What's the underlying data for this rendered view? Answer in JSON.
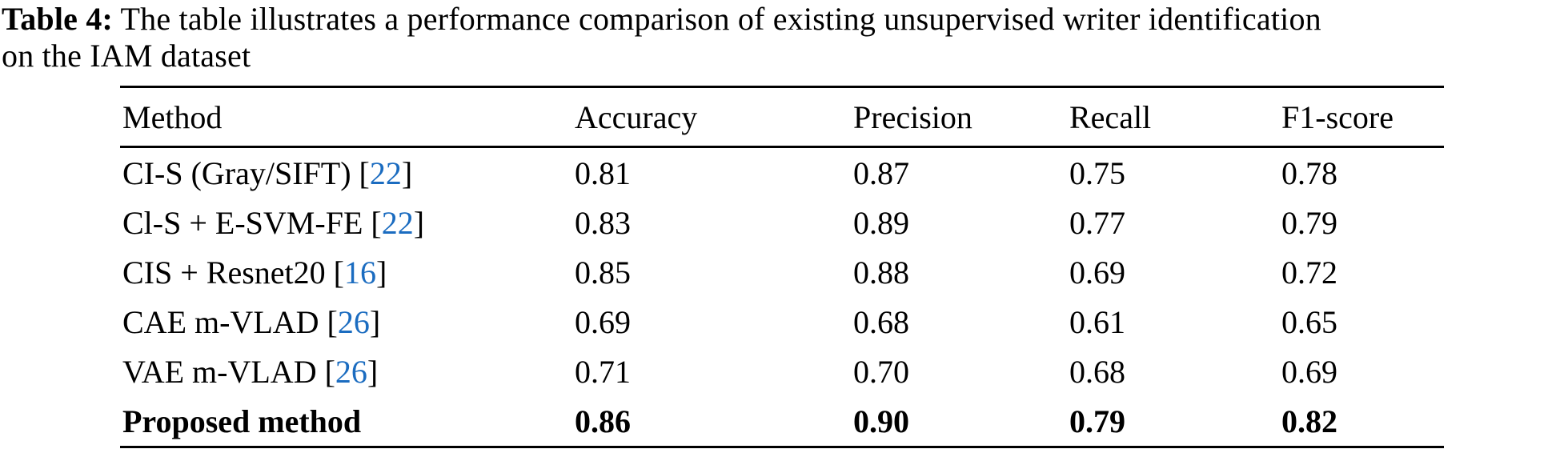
{
  "caption": {
    "label": "Table 4:",
    "line1": "The table illustrates a performance comparison of existing unsupervised writer identification",
    "line2": "on the IAM dataset"
  },
  "colors": {
    "text": "#000000",
    "citation_link": "#1b6cc0",
    "background": "#ffffff",
    "rule": "#000000"
  },
  "table": {
    "headers": [
      "Method",
      "Accuracy",
      "Precision",
      "Recall",
      "F1-score"
    ],
    "rows": [
      {
        "name": "CI-S (Gray/SIFT)",
        "bracket_open": " [",
        "cite": "22",
        "bracket_close": "]",
        "accuracy": "0.81",
        "precision": "0.87",
        "recall": "0.75",
        "f1": "0.78"
      },
      {
        "name": "Cl-S + E-SVM-FE",
        "bracket_open": " [",
        "cite": "22",
        "bracket_close": "]",
        "accuracy": "0.83",
        "precision": "0.89",
        "recall": "0.77",
        "f1": "0.79"
      },
      {
        "name": "CIS + Resnet20",
        "bracket_open": " [",
        "cite": "16",
        "bracket_close": "]",
        "accuracy": "0.85",
        "precision": "0.88",
        "recall": "0.69",
        "f1": "0.72"
      },
      {
        "name": "CAE m-VLAD",
        "bracket_open": " [",
        "cite": "26",
        "bracket_close": "]",
        "accuracy": "0.69",
        "precision": "0.68",
        "recall": "0.61",
        "f1": "0.65"
      },
      {
        "name": "VAE m-VLAD",
        "bracket_open": " [",
        "cite": "26",
        "bracket_close": "]",
        "accuracy": "0.71",
        "precision": "0.70",
        "recall": "0.68",
        "f1": "0.69"
      },
      {
        "name": "Proposed method",
        "accuracy": "0.86",
        "precision": "0.90",
        "recall": "0.79",
        "f1": "0.82"
      }
    ]
  }
}
